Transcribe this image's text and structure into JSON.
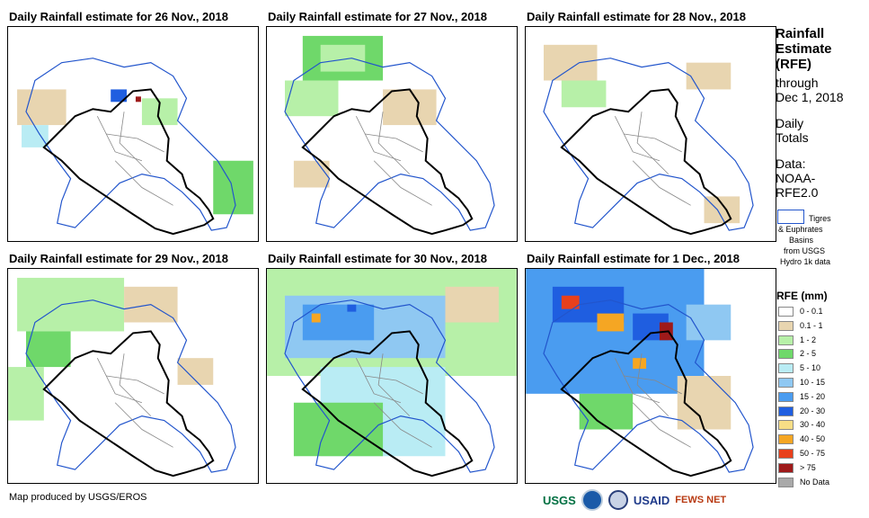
{
  "panels": [
    {
      "title": "Daily Rainfall estimate for 26 Nov., 2018"
    },
    {
      "title": "Daily Rainfall estimate for 27 Nov., 2018"
    },
    {
      "title": "Daily Rainfall estimate for 28 Nov., 2018"
    },
    {
      "title": "Daily Rainfall estimate for 29 Nov., 2018"
    },
    {
      "title": "Daily Rainfall estimate for 30 Nov., 2018"
    },
    {
      "title": "Daily Rainfall estimate for 1 Dec., 2018"
    }
  ],
  "sidebar": {
    "heading_line1": "Rainfall",
    "heading_line2": "Estimate",
    "heading_line3": "(RFE)",
    "through": "through",
    "date": "Dec 1, 2018",
    "daily1": "Daily",
    "daily2": "Totals",
    "data1": "Data:",
    "data2": "NOAA-",
    "data3": "RFE2.0"
  },
  "basin_legend": {
    "line1": "Tigres",
    "line2": "& Euphrates",
    "line3": "Basins",
    "line4": "from USGS",
    "line5": "Hydro 1k data"
  },
  "legend": {
    "title": "RFE (mm)",
    "classes": [
      {
        "label": "0 - 0.1",
        "color": "#ffffff"
      },
      {
        "label": "0.1 - 1",
        "color": "#e8d5b0"
      },
      {
        "label": "1 - 2",
        "color": "#b7f0a8"
      },
      {
        "label": "2 - 5",
        "color": "#6fd86a"
      },
      {
        "label": "5 - 10",
        "color": "#b9ecf4"
      },
      {
        "label": "10 - 15",
        "color": "#8fc8f2"
      },
      {
        "label": "15 - 20",
        "color": "#4a9cf0"
      },
      {
        "label": "20 - 30",
        "color": "#1f5ee0"
      },
      {
        "label": "30 - 40",
        "color": "#f7de86"
      },
      {
        "label": "40 - 50",
        "color": "#f5a623"
      },
      {
        "label": "50 - 75",
        "color": "#e8401c"
      },
      {
        "label": "> 75",
        "color": "#9e1a1a"
      },
      {
        "label": "No Data",
        "color": "#a9a9a9"
      }
    ]
  },
  "footer": {
    "credit": "Map produced by USGS/EROS"
  },
  "logos": {
    "usgs": "USGS",
    "noaa": "NOAA",
    "usaid": "USAID",
    "fewsnet": "FEWS NET"
  }
}
